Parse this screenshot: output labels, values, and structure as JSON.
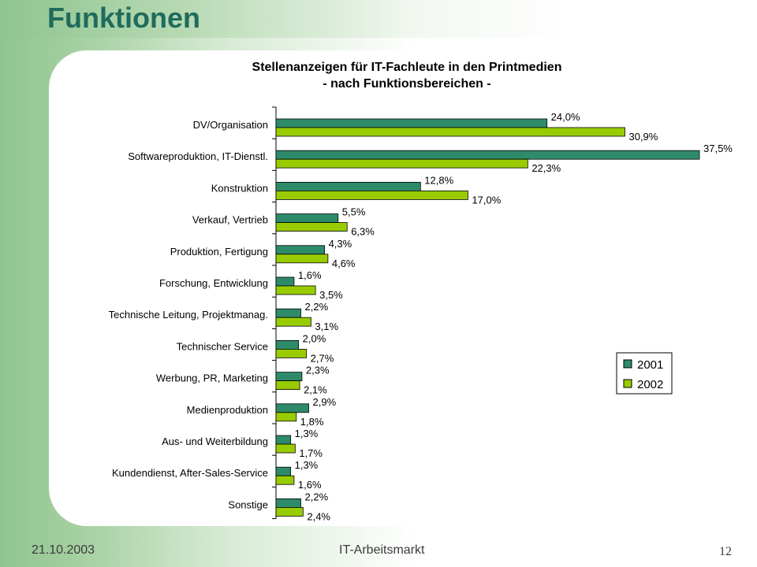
{
  "slide": {
    "title": "Funktionen",
    "footer_date": "21.10.2003",
    "footer_center": "IT-Arbeitsmarkt",
    "page_number": "12"
  },
  "colors": {
    "series_2001": "#2e8b6a",
    "series_2002": "#99cc00",
    "title": "#1f6b5d"
  },
  "chart_data": {
    "type": "bar",
    "orientation": "horizontal",
    "title": "Stellenanzeigen für IT-Fachleute in den Printmedien",
    "subtitle": "- nach Funktionsbereichen -",
    "xlabel": "",
    "ylabel": "",
    "xlim": [
      0,
      37.5
    ],
    "unit": "%",
    "grid": false,
    "legend_position": "right",
    "categories": [
      "DV/Organisation",
      "Softwareproduktion, IT-Dienstl.",
      "Konstruktion",
      "Verkauf, Vertrieb",
      "Produktion, Fertigung",
      "Forschung, Entwicklung",
      "Technische Leitung, Projektmanag.",
      "Technischer Service",
      "Werbung, PR, Marketing",
      "Medienproduktion",
      "Aus- und Weiterbildung",
      "Kundendienst, After-Sales-Service",
      "Sonstige"
    ],
    "series": [
      {
        "name": "2001",
        "values": [
          24.0,
          37.5,
          12.8,
          5.5,
          4.3,
          1.6,
          2.2,
          2.0,
          2.3,
          2.9,
          1.3,
          1.3,
          2.2
        ],
        "labels": [
          "24,0%",
          "37,5%",
          "12,8%",
          "5,5%",
          "4,3%",
          "1,6%",
          "2,2%",
          "2,0%",
          "2,3%",
          "2,9%",
          "1,3%",
          "1,3%",
          "2,2%"
        ]
      },
      {
        "name": "2002",
        "values": [
          30.9,
          22.3,
          17.0,
          6.3,
          4.6,
          3.5,
          3.1,
          2.7,
          2.1,
          1.8,
          1.7,
          1.6,
          2.4
        ],
        "labels": [
          "30,9%",
          "22,3%",
          "17,0%",
          "6,3%",
          "4,6%",
          "3,5%",
          "3,1%",
          "2,7%",
          "2,1%",
          "1,8%",
          "1,7%",
          "1,6%",
          "2,4%"
        ]
      }
    ]
  }
}
